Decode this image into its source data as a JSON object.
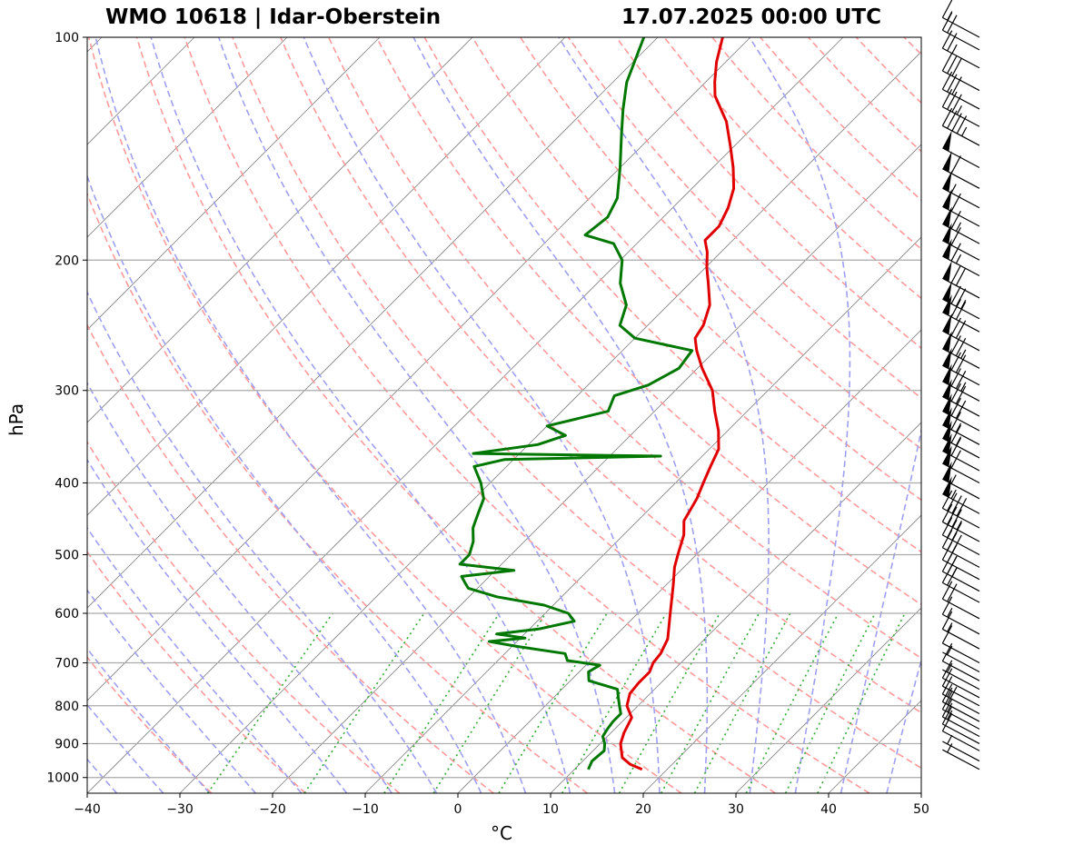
{
  "header": {
    "title_left": "WMO 10618 | Idar-Oberstein",
    "title_right": "17.07.2025 00:00 UTC"
  },
  "chart_data": {
    "type": "line",
    "subtype": "skew-t log-p",
    "xlabel": "°C",
    "ylabel": "hPa",
    "xlim": [
      -40,
      50
    ],
    "ylim": [
      1000,
      100
    ],
    "y_scale": "log",
    "x_ticks": [
      -40,
      -30,
      -20,
      -10,
      0,
      10,
      20,
      30,
      40,
      50
    ],
    "y_ticks": [
      100,
      200,
      300,
      400,
      500,
      600,
      700,
      800,
      900,
      1000
    ],
    "grid": "horizontal isobars",
    "background_lines": {
      "isotherms": "gray solid, skewed",
      "dry_adiabats": "red dashed",
      "moist_adiabats": "blue dashed",
      "mixing_ratio": "green dotted",
      "zero_isotherm": "black solid"
    },
    "colors": {
      "temperature": "#e00000",
      "dewpoint": "#007700",
      "isotherm": "#808080",
      "dry_adiabat": "#ff9a9a",
      "moist_adiabat": "#9f9ff0",
      "mixing_ratio": "#33aa33",
      "barb": "#000000"
    },
    "series": [
      {
        "key": "temperature",
        "points": [
          [
            975,
            17.3
          ],
          [
            960,
            15.5
          ],
          [
            940,
            13.9
          ],
          [
            900,
            12.2
          ],
          [
            870,
            11.4
          ],
          [
            830,
            10.6
          ],
          [
            800,
            8.8
          ],
          [
            770,
            7.8
          ],
          [
            745,
            7.6
          ],
          [
            720,
            7.6
          ],
          [
            700,
            7.0
          ],
          [
            680,
            6.8
          ],
          [
            650,
            6.0
          ],
          [
            600,
            3.5
          ],
          [
            550,
            0.8
          ],
          [
            520,
            -1.0
          ],
          [
            500,
            -2.0
          ],
          [
            470,
            -3.5
          ],
          [
            450,
            -5.0
          ],
          [
            420,
            -6.0
          ],
          [
            400,
            -7.0
          ],
          [
            380,
            -8.0
          ],
          [
            360,
            -9.0
          ],
          [
            340,
            -11.0
          ],
          [
            320,
            -13.5
          ],
          [
            300,
            -16.0
          ],
          [
            280,
            -19.5
          ],
          [
            265,
            -22.0
          ],
          [
            255,
            -23.5
          ],
          [
            245,
            -24.0
          ],
          [
            230,
            -25.5
          ],
          [
            215,
            -28.0
          ],
          [
            205,
            -29.8
          ],
          [
            195,
            -31.5
          ],
          [
            188,
            -33.0
          ],
          [
            180,
            -33.0
          ],
          [
            170,
            -34.0
          ],
          [
            160,
            -35.5
          ],
          [
            150,
            -37.8
          ],
          [
            140,
            -40.5
          ],
          [
            130,
            -43.5
          ],
          [
            120,
            -47.5
          ],
          [
            115,
            -49.0
          ],
          [
            108,
            -51.0
          ],
          [
            100,
            -53.0
          ]
        ]
      },
      {
        "key": "dewpoint",
        "points": [
          [
            975,
            11.5
          ],
          [
            950,
            11.0
          ],
          [
            920,
            11.2
          ],
          [
            900,
            10.5
          ],
          [
            880,
            9.5
          ],
          [
            860,
            9.2
          ],
          [
            840,
            9.0
          ],
          [
            820,
            9.0
          ],
          [
            800,
            8.0
          ],
          [
            780,
            7.0
          ],
          [
            760,
            6.0
          ],
          [
            740,
            2.0
          ],
          [
            720,
            1.0
          ],
          [
            705,
            1.5
          ],
          [
            695,
            -2.5
          ],
          [
            680,
            -3.5
          ],
          [
            665,
            -9.5
          ],
          [
            655,
            -13.0
          ],
          [
            648,
            -9.5
          ],
          [
            640,
            -13.0
          ],
          [
            630,
            -9.0
          ],
          [
            615,
            -6.0
          ],
          [
            600,
            -7.5
          ],
          [
            585,
            -11.0
          ],
          [
            570,
            -17.0
          ],
          [
            555,
            -21.0
          ],
          [
            545,
            -22.0
          ],
          [
            535,
            -23.0
          ],
          [
            525,
            -18.0
          ],
          [
            515,
            -24.5
          ],
          [
            500,
            -24.5
          ],
          [
            480,
            -25.5
          ],
          [
            460,
            -27.0
          ],
          [
            440,
            -28.0
          ],
          [
            420,
            -29.0
          ],
          [
            400,
            -31.0
          ],
          [
            380,
            -33.5
          ],
          [
            372,
            -31.0
          ],
          [
            368,
            -14.5
          ],
          [
            365,
            -35.0
          ],
          [
            355,
            -29.0
          ],
          [
            345,
            -27.0
          ],
          [
            335,
            -30.0
          ],
          [
            320,
            -25.0
          ],
          [
            305,
            -26.0
          ],
          [
            295,
            -23.5
          ],
          [
            280,
            -22.0
          ],
          [
            265,
            -22.5
          ],
          [
            255,
            -30.0
          ],
          [
            245,
            -33.0
          ],
          [
            230,
            -34.5
          ],
          [
            215,
            -37.5
          ],
          [
            200,
            -39.8
          ],
          [
            190,
            -42.5
          ],
          [
            185,
            -46.5
          ],
          [
            175,
            -46.0
          ],
          [
            165,
            -47.0
          ],
          [
            150,
            -50.0
          ],
          [
            135,
            -53.5
          ],
          [
            125,
            -56.0
          ],
          [
            115,
            -58.5
          ],
          [
            100,
            -61.5
          ]
        ]
      }
    ],
    "wind_barbs": [
      {
        "p": 975,
        "kt": 5
      },
      {
        "p": 950,
        "kt": 5
      },
      {
        "p": 920,
        "kt": 10
      },
      {
        "p": 900,
        "kt": 10
      },
      {
        "p": 880,
        "kt": 15
      },
      {
        "p": 860,
        "kt": 15
      },
      {
        "p": 840,
        "kt": 20
      },
      {
        "p": 820,
        "kt": 15
      },
      {
        "p": 800,
        "kt": 10
      },
      {
        "p": 780,
        "kt": 10
      },
      {
        "p": 760,
        "kt": 5
      },
      {
        "p": 740,
        "kt": 10
      },
      {
        "p": 720,
        "kt": 5
      },
      {
        "p": 700,
        "kt": 10
      },
      {
        "p": 670,
        "kt": 15
      },
      {
        "p": 640,
        "kt": 15
      },
      {
        "p": 610,
        "kt": 20
      },
      {
        "p": 580,
        "kt": 20
      },
      {
        "p": 560,
        "kt": 25
      },
      {
        "p": 540,
        "kt": 25
      },
      {
        "p": 520,
        "kt": 30
      },
      {
        "p": 500,
        "kt": 30
      },
      {
        "p": 480,
        "kt": 35
      },
      {
        "p": 460,
        "kt": 40
      },
      {
        "p": 440,
        "kt": 55
      },
      {
        "p": 420,
        "kt": 55
      },
      {
        "p": 400,
        "kt": 60
      },
      {
        "p": 385,
        "kt": 60
      },
      {
        "p": 370,
        "kt": 65
      },
      {
        "p": 355,
        "kt": 65
      },
      {
        "p": 340,
        "kt": 70
      },
      {
        "p": 325,
        "kt": 70
      },
      {
        "p": 310,
        "kt": 75
      },
      {
        "p": 295,
        "kt": 70
      },
      {
        "p": 280,
        "kt": 75
      },
      {
        "p": 265,
        "kt": 70
      },
      {
        "p": 250,
        "kt": 70
      },
      {
        "p": 240,
        "kt": 75
      },
      {
        "p": 225,
        "kt": 70
      },
      {
        "p": 210,
        "kt": 65
      },
      {
        "p": 200,
        "kt": 60
      },
      {
        "p": 190,
        "kt": 65
      },
      {
        "p": 180,
        "kt": 60
      },
      {
        "p": 170,
        "kt": 55
      },
      {
        "p": 160,
        "kt": 60
      },
      {
        "p": 150,
        "kt": 50
      },
      {
        "p": 140,
        "kt": 45
      },
      {
        "p": 132,
        "kt": 35
      },
      {
        "p": 125,
        "kt": 30
      },
      {
        "p": 118,
        "kt": 30
      },
      {
        "p": 110,
        "kt": 25
      },
      {
        "p": 104,
        "kt": 20
      },
      {
        "p": 100,
        "kt": 15
      }
    ]
  }
}
